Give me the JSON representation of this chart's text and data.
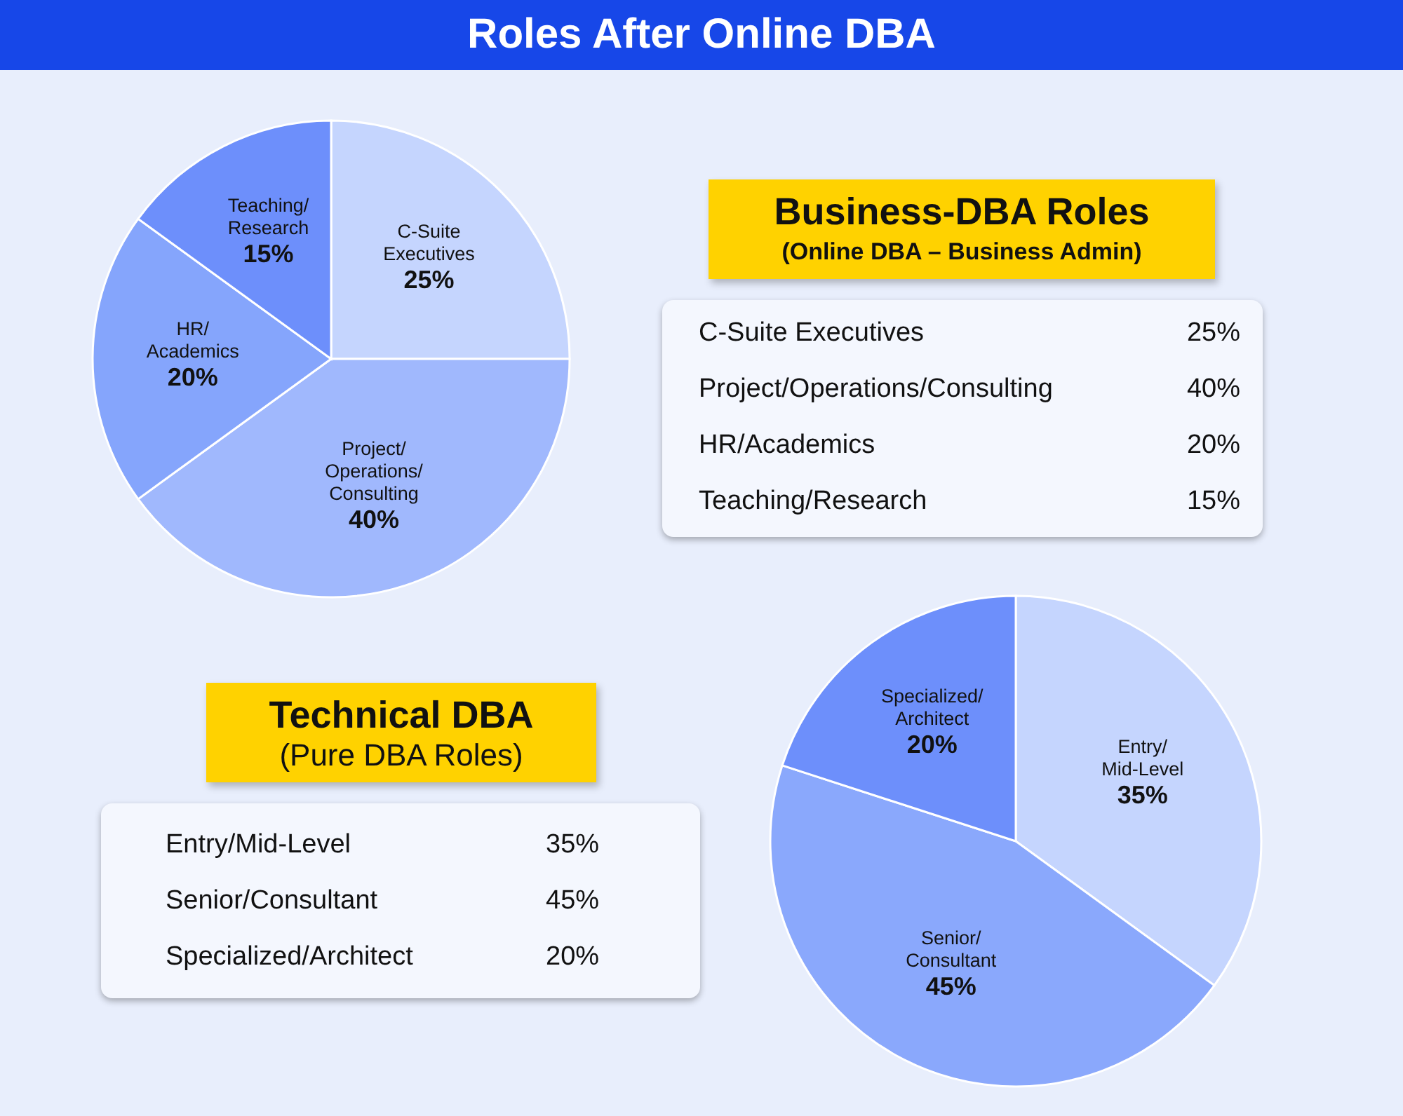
{
  "chart_data": [
    {
      "type": "other",
      "title": "Roles After Online DBA"
    },
    {
      "type": "pie",
      "title": "Business-DBA Roles",
      "subtitle": "(Online DBA – Business Admin)",
      "categories": [
        "C-Suite Executives",
        "Project/Operations/Consulting",
        "HR/Academics",
        "Teaching/Research"
      ],
      "values": [
        25,
        40,
        20,
        15
      ],
      "value_labels": [
        "25%",
        "40%",
        "20%",
        "15%"
      ],
      "colors": [
        "#c5d5fe",
        "#a0b8fd",
        "#85a5fc",
        "#6d8ffb"
      ]
    },
    {
      "type": "pie",
      "title": "Technical DBA",
      "subtitle": "(Pure DBA Roles)",
      "categories": [
        "Entry/Mid-Level",
        "Senior/Consultant",
        "Specialized/Architect"
      ],
      "values": [
        35,
        45,
        20
      ],
      "value_labels": [
        "35%",
        "45%",
        "20%"
      ],
      "colors": [
        "#c5d5fe",
        "#8aa8fc",
        "#6d8ffb"
      ]
    }
  ]
}
